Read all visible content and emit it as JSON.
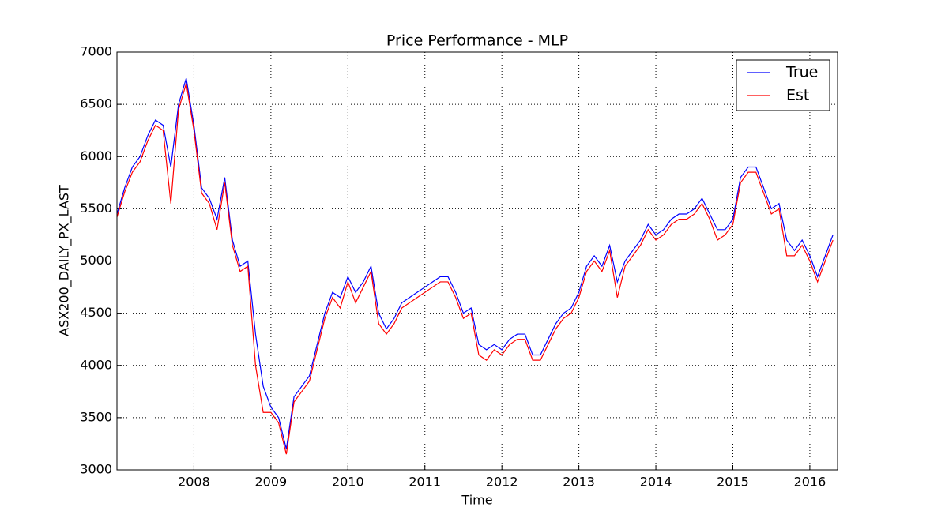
{
  "chart_data": {
    "type": "line",
    "title": "Price Performance - MLP",
    "xlabel": "Time",
    "ylabel": "ASX200_DAILY_PX_LAST",
    "x": [
      2007.0,
      2007.1,
      2007.2,
      2007.3,
      2007.4,
      2007.5,
      2007.6,
      2007.7,
      2007.8,
      2007.9,
      2008.0,
      2008.1,
      2008.2,
      2008.3,
      2008.4,
      2008.5,
      2008.6,
      2008.7,
      2008.8,
      2008.9,
      2009.0,
      2009.1,
      2009.2,
      2009.3,
      2009.4,
      2009.5,
      2009.6,
      2009.7,
      2009.8,
      2009.9,
      2010.0,
      2010.1,
      2010.2,
      2010.3,
      2010.4,
      2010.5,
      2010.6,
      2010.7,
      2010.8,
      2010.9,
      2011.0,
      2011.1,
      2011.2,
      2011.3,
      2011.4,
      2011.5,
      2011.6,
      2011.7,
      2011.8,
      2011.9,
      2012.0,
      2012.1,
      2012.2,
      2012.3,
      2012.4,
      2012.5,
      2012.6,
      2012.7,
      2012.8,
      2012.9,
      2013.0,
      2013.1,
      2013.2,
      2013.3,
      2013.4,
      2013.5,
      2013.6,
      2013.7,
      2013.8,
      2013.9,
      2014.0,
      2014.1,
      2014.2,
      2014.3,
      2014.4,
      2014.5,
      2014.6,
      2014.7,
      2014.8,
      2014.9,
      2015.0,
      2015.1,
      2015.2,
      2015.3,
      2015.4,
      2015.5,
      2015.6,
      2015.7,
      2015.8,
      2015.9,
      2016.0,
      2016.1,
      2016.2,
      2016.3
    ],
    "series": [
      {
        "name": "True",
        "color": "#0000ff",
        "values": [
          5450,
          5700,
          5900,
          6000,
          6200,
          6350,
          6300,
          5900,
          6500,
          6750,
          6300,
          5700,
          5600,
          5400,
          5800,
          5200,
          4950,
          5000,
          4300,
          3800,
          3600,
          3500,
          3200,
          3700,
          3800,
          3900,
          4200,
          4500,
          4700,
          4650,
          4850,
          4700,
          4800,
          4950,
          4500,
          4350,
          4450,
          4600,
          4650,
          4700,
          4750,
          4800,
          4850,
          4850,
          4700,
          4500,
          4550,
          4200,
          4150,
          4200,
          4150,
          4250,
          4300,
          4300,
          4100,
          4100,
          4250,
          4400,
          4500,
          4550,
          4700,
          4950,
          5050,
          4950,
          5150,
          4800,
          5000,
          5100,
          5200,
          5350,
          5250,
          5300,
          5400,
          5450,
          5450,
          5500,
          5600,
          5450,
          5300,
          5300,
          5400,
          5800,
          5900,
          5900,
          5700,
          5500,
          5550,
          5200,
          5100,
          5200,
          5050,
          4850,
          5050,
          5250
        ]
      },
      {
        "name": "Est",
        "color": "#ff0000",
        "values": [
          5420,
          5660,
          5850,
          5950,
          6150,
          6300,
          6250,
          5550,
          6450,
          6700,
          6250,
          5650,
          5550,
          5300,
          5750,
          5150,
          4900,
          4950,
          4000,
          3550,
          3550,
          3450,
          3150,
          3650,
          3750,
          3850,
          4150,
          4450,
          4650,
          4550,
          4800,
          4600,
          4750,
          4900,
          4400,
          4300,
          4400,
          4550,
          4600,
          4650,
          4700,
          4750,
          4800,
          4800,
          4650,
          4450,
          4500,
          4100,
          4050,
          4150,
          4100,
          4200,
          4250,
          4250,
          4050,
          4050,
          4200,
          4350,
          4450,
          4500,
          4650,
          4900,
          5000,
          4900,
          5100,
          4650,
          4950,
          5050,
          5150,
          5300,
          5200,
          5250,
          5350,
          5400,
          5400,
          5450,
          5550,
          5400,
          5200,
          5250,
          5350,
          5750,
          5850,
          5850,
          5650,
          5450,
          5500,
          5050,
          5050,
          5150,
          5000,
          4800,
          5000,
          5200
        ]
      }
    ],
    "xlim": [
      2007.0,
      2016.36
    ],
    "xticks": [
      2008,
      2009,
      2010,
      2011,
      2012,
      2013,
      2014,
      2015,
      2016
    ],
    "ylim": [
      3000,
      7000
    ],
    "yticks": [
      3000,
      3500,
      4000,
      4500,
      5000,
      5500,
      6000,
      6500,
      7000
    ],
    "grid": true,
    "legend": "upper right"
  }
}
